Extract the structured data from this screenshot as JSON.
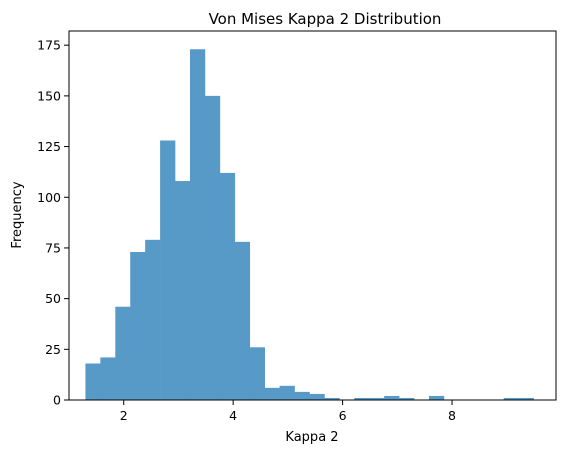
{
  "chart_data": {
    "type": "bar",
    "title": "Von Mises Kappa 2 Distribution",
    "xlabel": "Kappa 2",
    "ylabel": "Frequency",
    "xlim": [
      1.0,
      9.9
    ],
    "ylim": [
      0,
      182
    ],
    "xticks": [
      2,
      4,
      6,
      8
    ],
    "yticks": [
      0,
      25,
      50,
      75,
      100,
      125,
      150,
      175
    ],
    "bin_edges": [
      1.3,
      1.573,
      1.846,
      2.119,
      2.392,
      2.665,
      2.938,
      3.211,
      3.484,
      3.757,
      4.03,
      4.303,
      4.576,
      4.849,
      5.122,
      5.395,
      5.668,
      5.941,
      6.214,
      6.487,
      6.76,
      7.033,
      7.306,
      7.579,
      7.852,
      8.125,
      8.398,
      8.671,
      8.944,
      9.217,
      9.49
    ],
    "values": [
      18,
      21,
      46,
      73,
      79,
      128,
      108,
      173,
      150,
      112,
      78,
      26,
      6,
      7,
      4,
      3,
      1,
      0,
      1,
      1,
      2,
      1,
      0,
      2,
      0,
      0,
      0,
      0,
      1,
      1
    ],
    "bar_color": "#5799c7",
    "grid": false,
    "legend": "none"
  }
}
